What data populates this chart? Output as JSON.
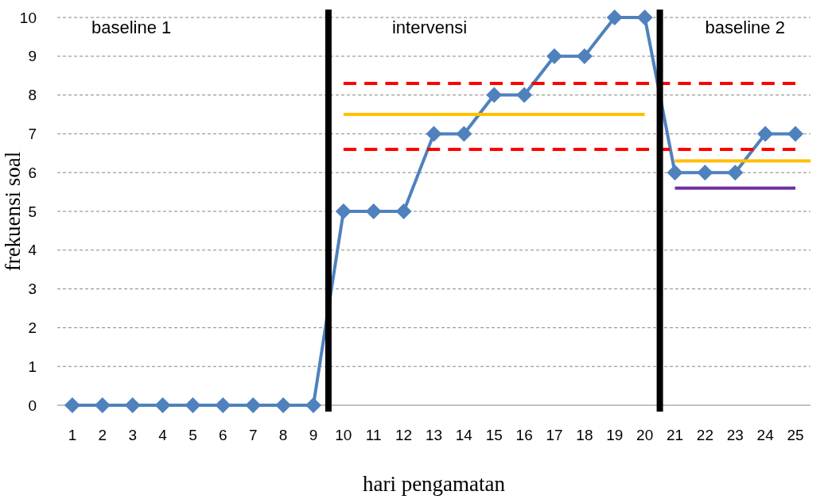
{
  "chart_data": {
    "type": "line",
    "xlabel": "hari pengamatan",
    "ylabel": "frekuensi soal",
    "x": [
      1,
      2,
      3,
      4,
      5,
      6,
      7,
      8,
      9,
      10,
      11,
      12,
      13,
      14,
      15,
      16,
      17,
      18,
      19,
      20,
      21,
      22,
      23,
      24,
      25
    ],
    "xlim": [
      0.5,
      25.5
    ],
    "xticks": [
      1,
      2,
      3,
      4,
      5,
      6,
      7,
      8,
      9,
      10,
      11,
      12,
      13,
      14,
      15,
      16,
      17,
      18,
      19,
      20,
      21,
      22,
      23,
      24,
      25
    ],
    "ylim": [
      0,
      10
    ],
    "yticks": [
      0,
      1,
      2,
      3,
      4,
      5,
      6,
      7,
      8,
      9,
      10
    ],
    "grid": "y",
    "marker": "diamond",
    "line_style": "solid",
    "series": [
      {
        "color": "#4f81bd",
        "values": [
          0,
          0,
          0,
          0,
          0,
          0,
          0,
          0,
          0,
          5,
          5,
          5,
          7,
          7,
          8,
          8,
          9,
          9,
          10,
          10,
          6,
          6,
          6,
          7,
          7
        ]
      },
      {
        "type": "line",
        "x": [
          10,
          25
        ],
        "values": [
          8.3,
          8.3
        ],
        "color": "#ff0000",
        "line_style": "dashed",
        "marker": "none"
      },
      {
        "type": "line",
        "x": [
          10,
          25
        ],
        "values": [
          6.6,
          6.6
        ],
        "color": "#ff0000",
        "line_style": "dashed",
        "marker": "none"
      },
      {
        "type": "line",
        "x": [
          10,
          20
        ],
        "values": [
          7.5,
          7.5
        ],
        "color": "#ffc000",
        "line_style": "solid",
        "marker": "none"
      },
      {
        "type": "line",
        "x": [
          21,
          25.5
        ],
        "values": [
          6.3,
          6.3
        ],
        "color": "#ffc000",
        "line_style": "solid",
        "marker": "none"
      },
      {
        "type": "line",
        "x": [
          21,
          25
        ],
        "values": [
          5.6,
          5.6
        ],
        "color": "#7030a0",
        "line_style": "solid",
        "marker": "none"
      }
    ],
    "ref_lines": [
      {
        "axis": "x",
        "value": 9.5,
        "color": "#000000"
      },
      {
        "axis": "x",
        "value": 20.5,
        "color": "#000000"
      }
    ],
    "annotations": [
      "baseline 1",
      "intervensi",
      "baseline 2"
    ]
  }
}
